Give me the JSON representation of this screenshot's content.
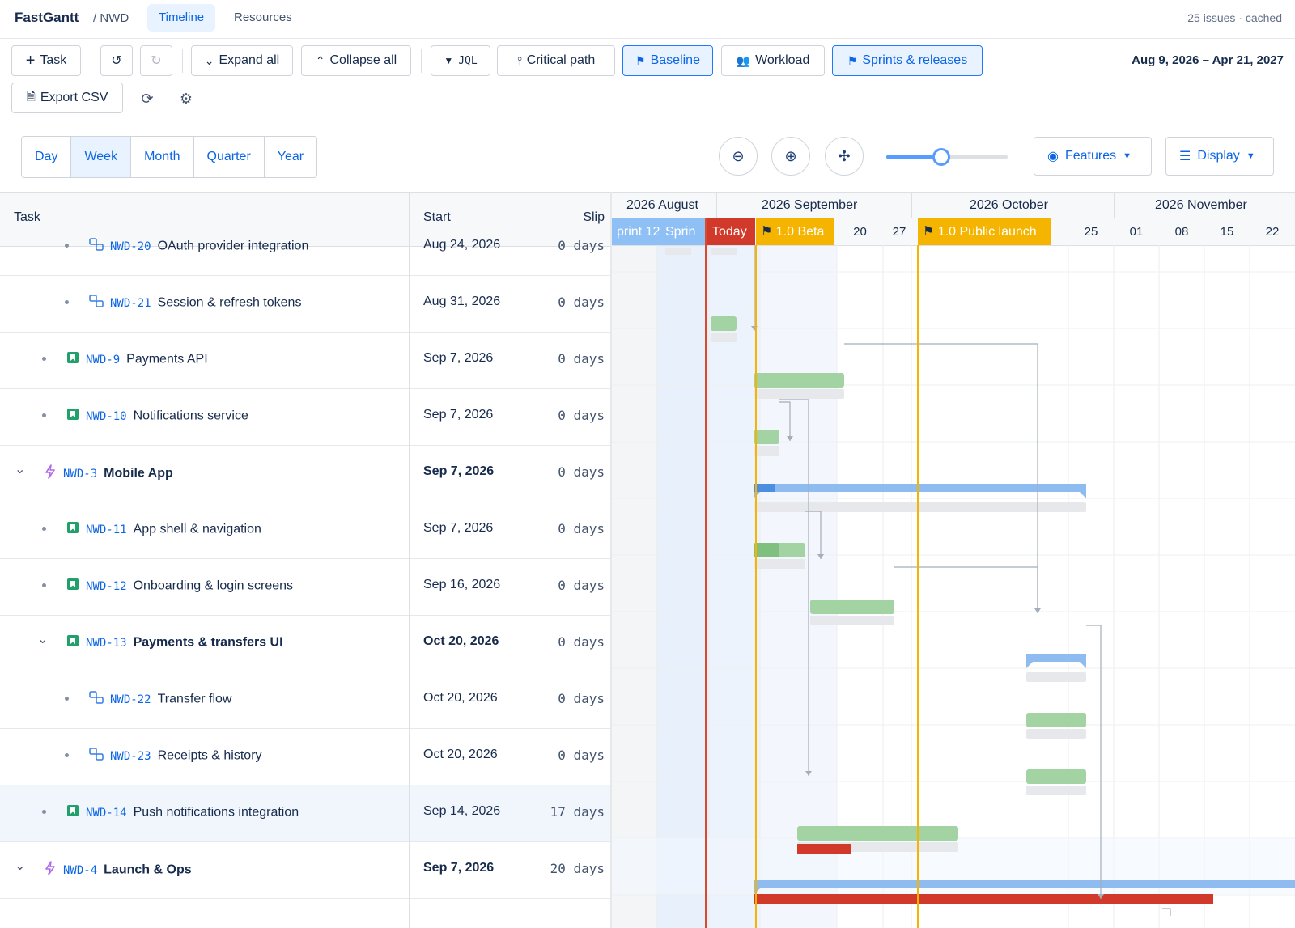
{
  "header": {
    "brand": "FastGantt",
    "project": "/ NWD",
    "tabs": [
      "Timeline",
      "Resources"
    ],
    "meta": "25 issues · cached"
  },
  "toolbar": {
    "task": "Task",
    "expand_all": "Expand all",
    "collapse_all": "Collapse all",
    "jql": "JQL",
    "critical_path": "Critical path",
    "baseline": "Baseline",
    "workload": "Workload",
    "sprints": "Sprints & releases",
    "export_csv": "Export CSV",
    "date_range": "Aug 9, 2026 – Apr 21, 2027"
  },
  "view": {
    "scales": [
      "Day",
      "Week",
      "Month",
      "Quarter",
      "Year"
    ],
    "selected_scale": "Week",
    "zoom_level": 0.45,
    "features": "Features",
    "display": "Display"
  },
  "columns": {
    "task": "Task",
    "start": "Start",
    "slip": "Slip"
  },
  "rows": [
    {
      "key": "NWD-20",
      "title": "OAuth provider integration",
      "start": "Aug 24, 2026",
      "slip": "0 days",
      "type": "subtask",
      "level": 2,
      "bold": false
    },
    {
      "key": "NWD-21",
      "title": "Session & refresh tokens",
      "start": "Aug 31, 2026",
      "slip": "0 days",
      "type": "subtask",
      "level": 2,
      "bold": false
    },
    {
      "key": "NWD-9",
      "title": "Payments API",
      "start": "Sep 7, 2026",
      "slip": "0 days",
      "type": "story",
      "level": 1,
      "bold": false
    },
    {
      "key": "NWD-10",
      "title": "Notifications service",
      "start": "Sep 7, 2026",
      "slip": "0 days",
      "type": "story",
      "level": 1,
      "bold": false
    },
    {
      "key": "NWD-3",
      "title": "Mobile App",
      "start": "Sep 7, 2026",
      "slip": "0 days",
      "type": "epic",
      "level": 0,
      "bold": true
    },
    {
      "key": "NWD-11",
      "title": "App shell & navigation",
      "start": "Sep 7, 2026",
      "slip": "0 days",
      "type": "story",
      "level": 1,
      "bold": false
    },
    {
      "key": "NWD-12",
      "title": "Onboarding & login screens",
      "start": "Sep 16, 2026",
      "slip": "0 days",
      "type": "story",
      "level": 1,
      "bold": false
    },
    {
      "key": "NWD-13",
      "title": "Payments & transfers UI",
      "start": "Oct 20, 2026",
      "slip": "0 days",
      "type": "story",
      "level": 1,
      "bold": true
    },
    {
      "key": "NWD-22",
      "title": "Transfer flow",
      "start": "Oct 20, 2026",
      "slip": "0 days",
      "type": "subtask",
      "level": 2,
      "bold": false
    },
    {
      "key": "NWD-23",
      "title": "Receipts & history",
      "start": "Oct 20, 2026",
      "slip": "0 days",
      "type": "subtask",
      "level": 2,
      "bold": false
    },
    {
      "key": "NWD-14",
      "title": "Push notifications integration",
      "start": "Sep 14, 2026",
      "slip": "17 days",
      "type": "story",
      "level": 1,
      "bold": false
    },
    {
      "key": "NWD-4",
      "title": "Launch & Ops",
      "start": "Sep 7, 2026",
      "slip": "20 days",
      "type": "epic",
      "level": 0,
      "bold": true
    }
  ],
  "timeline": {
    "months": [
      "2026 August",
      "2026 September",
      "2026 October",
      "2026 November"
    ],
    "weeks": [
      "20",
      "27",
      "25",
      "01",
      "08",
      "15",
      "22"
    ],
    "markers": {
      "sprint_a": "print 12",
      "sprint_b": "Sprin",
      "today": "Today",
      "beta": "1.0 Beta",
      "launch": "1.0 Public launch"
    }
  },
  "colors": {
    "accent": "#0c66e4",
    "bar_done": "#a3d3a2",
    "bar_summary": "#8fbcf0",
    "bar_slip": "#d13a2a",
    "today": "#d9492b",
    "release": "#f5b400"
  }
}
